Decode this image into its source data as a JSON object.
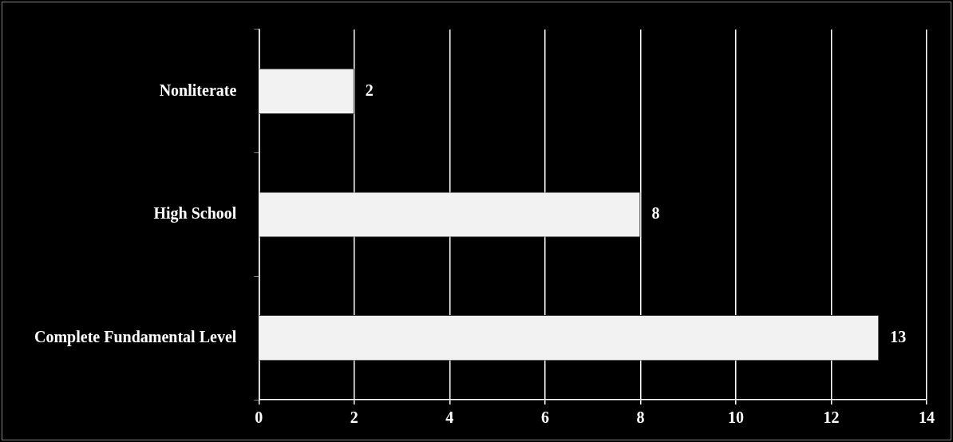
{
  "chart_data": {
    "type": "bar",
    "orientation": "horizontal",
    "categories": [
      "Nonliterate",
      "High School",
      "Complete Fundamental Level"
    ],
    "values": [
      2,
      8,
      13
    ],
    "color": "#f2f2f2",
    "xlim": [
      0,
      14
    ],
    "xticks": [
      0,
      2,
      4,
      6,
      8,
      10,
      12,
      14
    ],
    "grid": "x",
    "data_labels": true,
    "legend": false
  }
}
